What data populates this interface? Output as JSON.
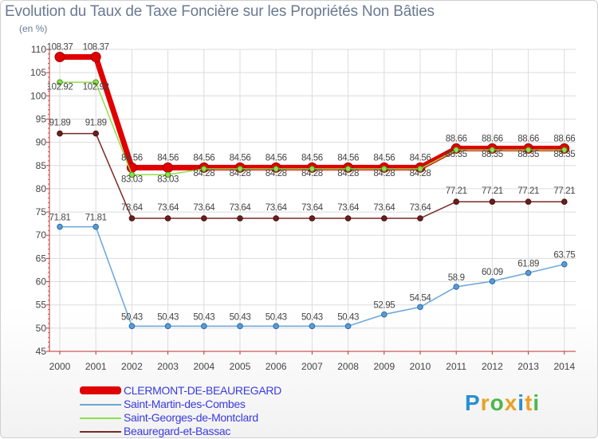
{
  "header": {
    "title": "Evolution du Taux de Taxe Foncière sur les Propriétés Non Bâties",
    "unit": "(en %)"
  },
  "brand": {
    "text": "Proxiti",
    "letters": [
      "P",
      "r",
      "o",
      "x",
      "i",
      "t",
      "i"
    ],
    "colors": [
      "#2a8fd0",
      "#e8a126",
      "#4cb748",
      "#e8a126",
      "#2a8fd0",
      "#e8a126",
      "#4cb748"
    ]
  },
  "chart_data": {
    "type": "line",
    "title": "Evolution du Taux de Taxe Foncière sur les Propriétés Non Bâties",
    "ylabel": "(en %)",
    "xlabel": "",
    "categories": [
      "2000",
      "2001",
      "2002",
      "2003",
      "2004",
      "2005",
      "2006",
      "2007",
      "2008",
      "2009",
      "2010",
      "2011",
      "2012",
      "2013",
      "2014"
    ],
    "ylim": [
      45,
      110
    ],
    "yticks": [
      45,
      50,
      55,
      60,
      65,
      70,
      75,
      80,
      85,
      90,
      95,
      100,
      105,
      110
    ],
    "grid": true,
    "legend_position": "bottom-left",
    "series": [
      {
        "name": "CLERMONT-DE-BEAUREGARD",
        "color": "#e00000",
        "values": [
          108.37,
          108.37,
          84.56,
          84.56,
          84.56,
          84.56,
          84.56,
          84.56,
          84.56,
          84.56,
          84.56,
          88.66,
          88.66,
          88.66,
          88.66
        ],
        "labels": [
          "108.37",
          "108.37",
          "84.56",
          "84.56",
          "84.56",
          "84.56",
          "84.56",
          "84.56",
          "84.56",
          "84.56",
          "84.56",
          "88.66",
          "88.66",
          "88.66",
          "88.66"
        ]
      },
      {
        "name": "Saint-Martin-des-Combes",
        "color": "#6aa5d8",
        "values": [
          71.81,
          71.81,
          50.43,
          50.43,
          50.43,
          50.43,
          50.43,
          50.43,
          50.43,
          52.95,
          54.54,
          58.9,
          60.09,
          61.89,
          63.75
        ],
        "labels": [
          "71.81",
          "71.81",
          "50.43",
          "50.43",
          "50.43",
          "50.43",
          "50.43",
          "50.43",
          "50.43",
          "52.95",
          "54.54",
          "58.9",
          "60.09",
          "61.89",
          "63.75"
        ]
      },
      {
        "name": "Saint-Georges-de-Montclard",
        "color": "#8ee04a",
        "values": [
          102.92,
          102.92,
          83.03,
          83.03,
          84.28,
          84.28,
          84.28,
          84.28,
          84.28,
          84.28,
          84.28,
          88.35,
          88.35,
          88.35,
          88.35
        ],
        "labels": [
          "102.92",
          "102.92",
          "83.03",
          "83.03",
          "84.28",
          "84.28",
          "84.28",
          "84.28",
          "84.28",
          "84.28",
          "84.28",
          "88.35",
          "88.35",
          "88.35",
          "88.35"
        ]
      },
      {
        "name": "Beauregard-et-Bassac",
        "color": "#7a2a2a",
        "values": [
          91.89,
          91.89,
          73.64,
          73.64,
          73.64,
          73.64,
          73.64,
          73.64,
          73.64,
          73.64,
          73.64,
          77.21,
          77.21,
          77.21,
          77.21
        ],
        "labels": [
          "91.89",
          "91.89",
          "73.64",
          "73.64",
          "73.64",
          "73.64",
          "73.64",
          "73.64",
          "73.64",
          "73.64",
          "73.64",
          "77.21",
          "77.21",
          "77.21",
          "77.21"
        ]
      }
    ]
  }
}
